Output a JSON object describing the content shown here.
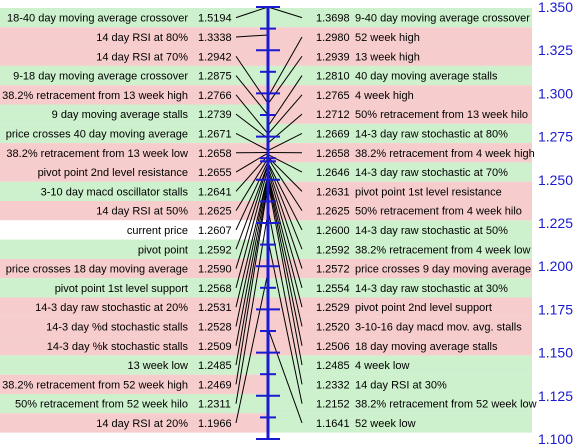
{
  "chart_data": {
    "type": "table",
    "axis": {
      "min": 1.1,
      "max": 1.35,
      "ticks": [
        "1.350",
        "1.325",
        "1.300",
        "1.275",
        "1.250",
        "1.225",
        "1.200",
        "1.175",
        "1.150",
        "1.125",
        "1.100"
      ]
    },
    "current_price": 1.2607,
    "colors": {
      "axis": "#1a1ad0",
      "above": "#cdf0cd",
      "below": "#f6cccc",
      "neutral": "#ffffff",
      "line": "#000000"
    },
    "left": [
      {
        "label": "18-40 day moving average crossover",
        "value": 1.5194,
        "side": "above"
      },
      {
        "label": "14 day RSI at 80%",
        "value": 1.3338,
        "side": "below"
      },
      {
        "label": "14 day RSI at 70%",
        "value": 1.2942,
        "side": "below"
      },
      {
        "label": "9-18 day moving average crossover",
        "value": 1.2875,
        "side": "above"
      },
      {
        "label": "38.2% retracement from 13 week high",
        "value": 1.2766,
        "side": "below"
      },
      {
        "label": "9 day moving average stalls",
        "value": 1.2739,
        "side": "above"
      },
      {
        "label": "price crosses 40 day moving average",
        "value": 1.2671,
        "side": "above"
      },
      {
        "label": "38.2% retracement from 13 week low",
        "value": 1.2658,
        "side": "below"
      },
      {
        "label": "pivot point 2nd level resistance",
        "value": 1.2655,
        "side": "below"
      },
      {
        "label": "3-10 day macd oscillator stalls",
        "value": 1.2641,
        "side": "above"
      },
      {
        "label": "14 day RSI at 50%",
        "value": 1.2625,
        "side": "below"
      },
      {
        "label": "current price",
        "value": 1.2607,
        "side": "neutral"
      },
      {
        "label": "pivot point",
        "value": 1.2592,
        "side": "above"
      },
      {
        "label": "price crosses 18 day moving average",
        "value": 1.259,
        "side": "below"
      },
      {
        "label": "pivot point 1st level support",
        "value": 1.2568,
        "side": "above"
      },
      {
        "label": "14-3 day raw stochastic at 20%",
        "value": 1.2531,
        "side": "below"
      },
      {
        "label": "14-3 day %d stochastic stalls",
        "value": 1.2528,
        "side": "below"
      },
      {
        "label": "14-3 day %k stochastic stalls",
        "value": 1.2509,
        "side": "below"
      },
      {
        "label": "13 week low",
        "value": 1.2485,
        "side": "above"
      },
      {
        "label": "38.2% retracement from 52 week high",
        "value": 1.2469,
        "side": "below"
      },
      {
        "label": "50% retracement from 52 week hilo",
        "value": 1.2311,
        "side": "above"
      },
      {
        "label": "14 day RSI at 20%",
        "value": 1.1966,
        "side": "below"
      }
    ],
    "right": [
      {
        "label": "9-40 day moving average crossover",
        "value": 1.3698,
        "side": "above"
      },
      {
        "label": "52 week high",
        "value": 1.298,
        "side": "below"
      },
      {
        "label": "13 week high",
        "value": 1.2939,
        "side": "below"
      },
      {
        "label": "40 day moving average stalls",
        "value": 1.281,
        "side": "above"
      },
      {
        "label": "4 week high",
        "value": 1.2765,
        "side": "below"
      },
      {
        "label": "50% retracement from 13 week hilo",
        "value": 1.2712,
        "side": "below"
      },
      {
        "label": "14-3 day raw stochastic at 80%",
        "value": 1.2669,
        "side": "above"
      },
      {
        "label": "38.2% retracement from 4 week high",
        "value": 1.2658,
        "side": "below"
      },
      {
        "label": "14-3 day raw stochastic at 70%",
        "value": 1.2646,
        "side": "above"
      },
      {
        "label": "pivot point 1st level resistance",
        "value": 1.2631,
        "side": "below"
      },
      {
        "label": "50% retracement from 4 week hilo",
        "value": 1.2625,
        "side": "below"
      },
      {
        "label": "14-3 day raw stochastic at 50%",
        "value": 1.26,
        "side": "above"
      },
      {
        "label": "38.2% retracement from 4 week low",
        "value": 1.2592,
        "side": "above"
      },
      {
        "label": "price crosses 9 day moving average",
        "value": 1.2572,
        "side": "below"
      },
      {
        "label": "14-3 day raw stochastic at 30%",
        "value": 1.2554,
        "side": "above"
      },
      {
        "label": "pivot point 2nd level support",
        "value": 1.2529,
        "side": "below"
      },
      {
        "label": "3-10-16 day macd mov. avg. stalls",
        "value": 1.252,
        "side": "below"
      },
      {
        "label": "18 day moving average stalls",
        "value": 1.2506,
        "side": "below"
      },
      {
        "label": "4 week low",
        "value": 1.2485,
        "side": "above"
      },
      {
        "label": "14 day RSI at 30%",
        "value": 1.2332,
        "side": "above"
      },
      {
        "label": "38.2% retracement from 52 week low",
        "value": 1.2152,
        "side": "above"
      },
      {
        "label": "52 week low",
        "value": 1.1641,
        "side": "above"
      }
    ]
  }
}
